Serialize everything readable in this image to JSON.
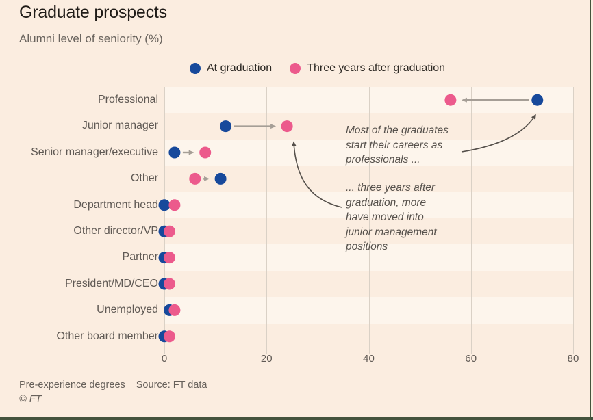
{
  "header": {
    "title": "Graduate prospects",
    "subtitle": "Alumni level of seniority (%)"
  },
  "chart_data": {
    "type": "dumbbell",
    "title": "Graduate prospects",
    "subtitle": "Alumni level of seniority (%)",
    "categories": [
      "Professional",
      "Junior manager",
      "Senior manager/executive",
      "Other",
      "Department head",
      "Other director/VP",
      "Partner",
      "President/MD/CEO",
      "Unemployed",
      "Other board member"
    ],
    "series": [
      {
        "name": "At graduation",
        "color": "#17499B",
        "values": [
          73,
          12,
          2,
          11,
          0,
          0,
          0,
          0,
          1,
          0
        ]
      },
      {
        "name": "Three years after graduation",
        "color": "#EC5A8C",
        "values": [
          56,
          24,
          8,
          6,
          2,
          1,
          1,
          1,
          2,
          1
        ]
      }
    ],
    "xticks": [
      0,
      20,
      40,
      60,
      80
    ],
    "xlim": [
      0,
      80
    ],
    "grid": "vertical",
    "legend_position": "top",
    "row_arrows": [
      {
        "row": 0,
        "from": 0,
        "to": 1
      },
      {
        "row": 1,
        "from": 0,
        "to": 1
      },
      {
        "row": 2,
        "from": 0,
        "to": 1
      },
      {
        "row": 3,
        "from": 1,
        "to": 0
      }
    ],
    "annotations": [
      "Most of the graduates\nstart their careers as\nprofessionals ...",
      "... three years after\ngraduation, more\nhave moved into\njunior management\npositions"
    ]
  },
  "annotations": {
    "professional": "Most of the graduates\nstart their careers as\nprofessionals ...",
    "junior": "... three years after\ngraduation, more\nhave moved into\njunior management\npositions"
  },
  "footer": {
    "note": "Pre-experience degrees",
    "source": "Source: FT data",
    "copyright": "© FT"
  },
  "colors": {
    "background": "#FBEDE0",
    "row_stripe": "#FDF5EC",
    "gridline": "#DAD1C6",
    "at_graduation_blue": "#17499B",
    "three_years_pink": "#EC5A8C",
    "dot_arrow_gray": "#A59E96",
    "annotation_arrow_gray": "#55504B",
    "accent_bar_green": "#44533D"
  }
}
